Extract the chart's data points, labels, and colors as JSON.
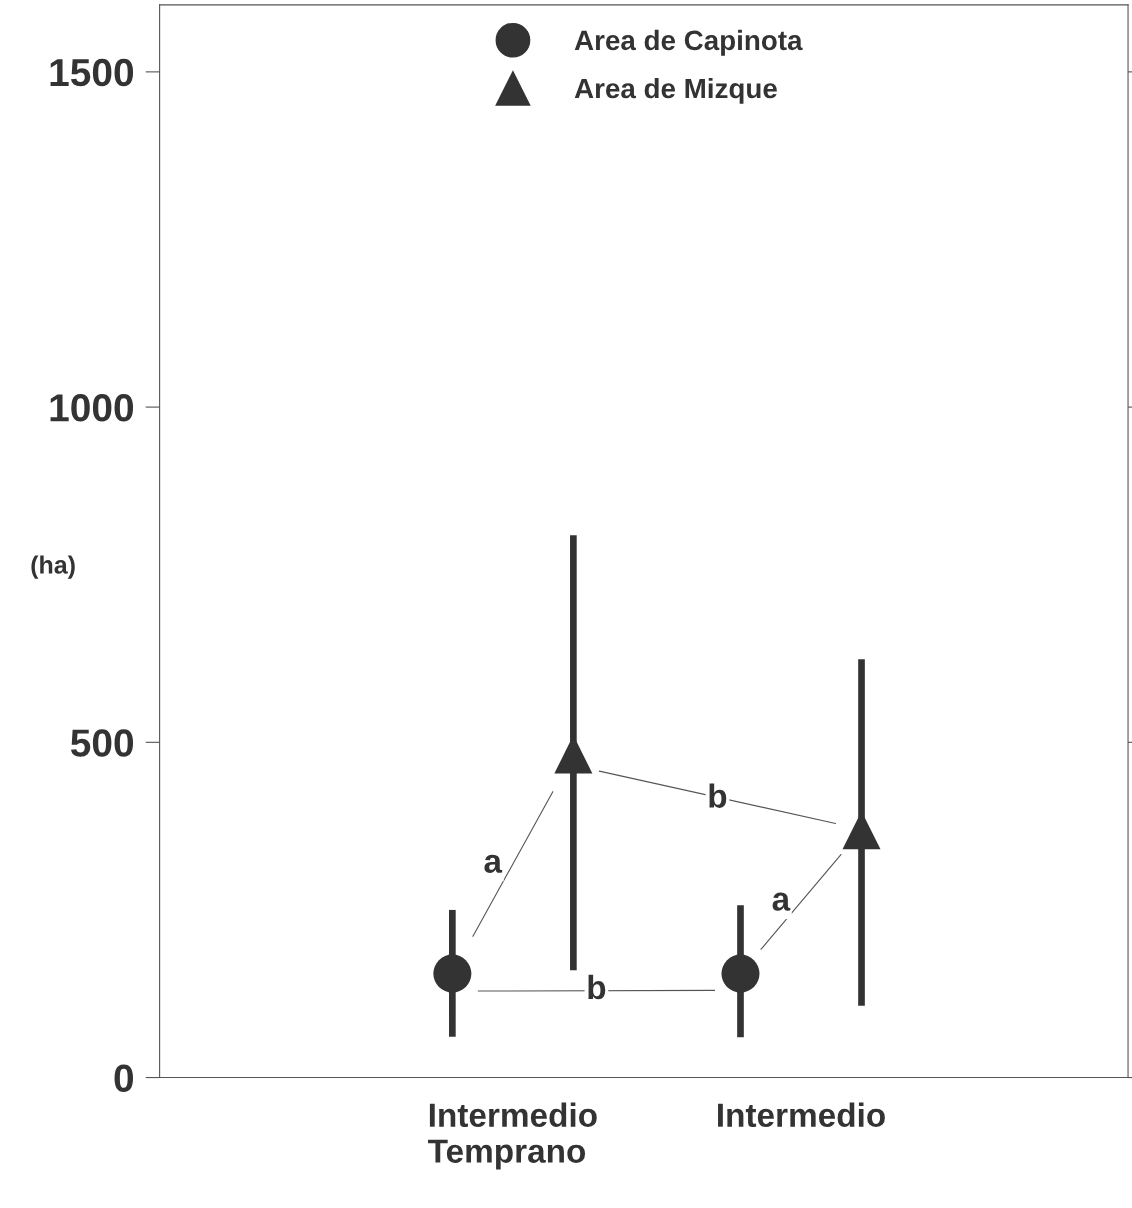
{
  "chart_data": {
    "type": "scatter",
    "categories": [
      "Intermedio\nTemprano",
      "Intermedio"
    ],
    "ylabel": "(ha)",
    "ylim": [
      0,
      1600
    ],
    "yticks": [
      0,
      500,
      1000,
      1500
    ],
    "series": [
      {
        "name": "Area de Capinota",
        "color": "#333333",
        "marker": "circle",
        "values": [
          155,
          155
        ],
        "errors": [
          [
            61,
            250
          ],
          [
            60,
            257
          ]
        ]
      },
      {
        "name": "Area de Mizque",
        "color": "#333333",
        "marker": "triangle",
        "values": [
          482,
          369
        ],
        "errors": [
          [
            160,
            809
          ],
          [
            107,
            624
          ]
        ]
      }
    ],
    "annotations": [
      "a",
      "b",
      "a",
      "b"
    ],
    "legend": "top",
    "grid": false
  }
}
